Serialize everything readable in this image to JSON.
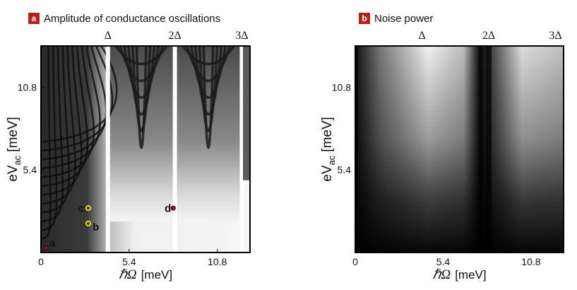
{
  "panels": [
    {
      "letter": "a",
      "title": "Amplitude of conductance oscillations"
    },
    {
      "letter": "b",
      "title": "Noise power"
    }
  ],
  "chart_data": [
    {
      "type": "heatmap",
      "title": "Amplitude of conductance oscillations",
      "xlabel_symbol": "ℏΩ",
      "xlabel_unit": "[meV]",
      "ylabel_main": "eV",
      "ylabel_sub": "ac",
      "ylabel_unit": "[meV]",
      "xlim": [
        0,
        12.8
      ],
      "ylim": [
        0,
        13.5
      ],
      "xticks": [
        {
          "value": 0,
          "label": "0"
        },
        {
          "value": 5.4,
          "label": "5.4"
        },
        {
          "value": 10.8,
          "label": "10.8"
        }
      ],
      "yticks": [
        {
          "value": 5.4,
          "label": "5.4"
        },
        {
          "value": 10.8,
          "label": "10.8"
        }
      ],
      "top_ticks": [
        {
          "value": 4.1,
          "label": "Δ"
        },
        {
          "value": 8.2,
          "label": "2Δ"
        },
        {
          "value": 12.3,
          "label": "3Δ"
        }
      ],
      "bright_lines_x": [
        4.1,
        8.2,
        12.3
      ],
      "colormap": "grayscale",
      "points": [
        {
          "label": "a",
          "x": 0.3,
          "y": 0.3,
          "color": "#7a1a1a"
        },
        {
          "label": "b",
          "x": 2.9,
          "y": 1.9,
          "color": "#f2e200"
        },
        {
          "label": "c",
          "x": 2.9,
          "y": 2.9,
          "color": "#f2e200"
        },
        {
          "label": "d",
          "x": 8.1,
          "y": 2.9,
          "color": "#7a1a1a"
        }
      ]
    },
    {
      "type": "heatmap",
      "title": "Noise power",
      "xlabel_symbol": "ℏΩ",
      "xlabel_unit": "[meV]",
      "ylabel_main": "eV",
      "ylabel_sub": "ac",
      "ylabel_unit": "[meV]",
      "xlim": [
        0,
        12.8
      ],
      "ylim": [
        0,
        13.5
      ],
      "xticks": [
        {
          "value": 0,
          "label": "0"
        },
        {
          "value": 5.4,
          "label": "5.4"
        },
        {
          "value": 10.8,
          "label": "10.8"
        }
      ],
      "yticks": [
        {
          "value": 5.4,
          "label": "5.4"
        },
        {
          "value": 10.8,
          "label": "10.8"
        }
      ],
      "top_ticks": [
        {
          "value": 4.1,
          "label": "Δ"
        },
        {
          "value": 8.2,
          "label": "2Δ"
        },
        {
          "value": 12.3,
          "label": "3Δ"
        }
      ],
      "dark_lines_x": [
        0,
        8.2
      ],
      "colormap": "grayscale"
    }
  ]
}
